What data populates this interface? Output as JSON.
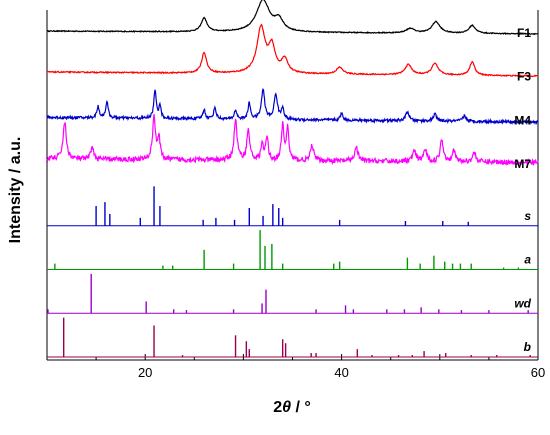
{
  "chart_data": {
    "type": "line",
    "xlabel_prefix": "2",
    "xlabel_theta": "θ",
    "xlabel_suffix": " / °",
    "ylabel": "Intensity / a.u.",
    "xlim": [
      10,
      60
    ],
    "xticks": [
      "20",
      "40",
      "60"
    ],
    "grid": false,
    "series": [
      {
        "name": "F1",
        "color": "#000000",
        "label_italic": false,
        "kind": "pattern",
        "base": 0.95,
        "noise": 0.08,
        "slope": 0.25,
        "peaks": [
          [
            26.0,
            1.2,
            0.35
          ],
          [
            32.0,
            2.8,
            0.8
          ],
          [
            33.6,
            1.0,
            0.5
          ],
          [
            47.0,
            0.4,
            0.5
          ],
          [
            49.6,
            1.0,
            0.5
          ],
          [
            53.3,
            0.7,
            0.4
          ]
        ]
      },
      {
        "name": "F3",
        "color": "#ff0000",
        "label_italic": false,
        "kind": "pattern",
        "base": 1.1,
        "noise": 0.1,
        "slope": 0.35,
        "peaks": [
          [
            26.0,
            1.8,
            0.3
          ],
          [
            31.8,
            4.0,
            0.5
          ],
          [
            32.9,
            2.2,
            0.4
          ],
          [
            34.2,
            1.2,
            0.4
          ],
          [
            39.8,
            0.6,
            0.4
          ],
          [
            46.8,
            0.9,
            0.4
          ],
          [
            49.5,
            1.0,
            0.4
          ],
          [
            53.3,
            1.2,
            0.3
          ]
        ]
      },
      {
        "name": "M4",
        "color": "#0000cc",
        "label_italic": false,
        "kind": "pattern",
        "base": 0.9,
        "noise": 0.25,
        "slope": 0.4,
        "peaks": [
          [
            15.2,
            1.0,
            0.15
          ],
          [
            16.1,
            1.4,
            0.15
          ],
          [
            21.0,
            2.4,
            0.15
          ],
          [
            21.5,
            1.2,
            0.12
          ],
          [
            26.0,
            0.8,
            0.15
          ],
          [
            27.1,
            1.0,
            0.15
          ],
          [
            29.2,
            0.8,
            0.15
          ],
          [
            30.6,
            1.4,
            0.15
          ],
          [
            32.0,
            2.6,
            0.2
          ],
          [
            33.3,
            2.2,
            0.2
          ],
          [
            34.0,
            1.0,
            0.15
          ],
          [
            40.0,
            0.6,
            0.15
          ],
          [
            46.7,
            0.8,
            0.2
          ],
          [
            49.5,
            0.6,
            0.2
          ],
          [
            52.5,
            0.5,
            0.2
          ]
        ]
      },
      {
        "name": "M7",
        "color": "#ff00ff",
        "label_italic": false,
        "kind": "pattern",
        "base": 1.2,
        "noise": 0.45,
        "slope": 0.3,
        "peaks": [
          [
            11.8,
            3.2,
            0.2
          ],
          [
            14.6,
            1.2,
            0.15
          ],
          [
            20.9,
            3.8,
            0.18
          ],
          [
            21.4,
            1.8,
            0.15
          ],
          [
            29.2,
            3.6,
            0.18
          ],
          [
            30.5,
            2.6,
            0.18
          ],
          [
            31.9,
            1.4,
            0.15
          ],
          [
            32.4,
            2.0,
            0.15
          ],
          [
            34.0,
            3.0,
            0.15
          ],
          [
            34.5,
            2.8,
            0.15
          ],
          [
            37.0,
            1.4,
            0.18
          ],
          [
            41.5,
            1.2,
            0.2
          ],
          [
            47.4,
            0.9,
            0.2
          ],
          [
            48.5,
            1.0,
            0.2
          ],
          [
            50.2,
            2.0,
            0.18
          ],
          [
            51.4,
            1.0,
            0.2
          ],
          [
            53.5,
            0.8,
            0.2
          ]
        ]
      },
      {
        "name": "s",
        "color": "#0000cc",
        "label_italic": true,
        "kind": "sticks",
        "sticks": [
          [
            15.0,
            0.5
          ],
          [
            15.9,
            0.6
          ],
          [
            16.4,
            0.3
          ],
          [
            19.5,
            0.2
          ],
          [
            20.9,
            1.0
          ],
          [
            21.5,
            0.5
          ],
          [
            25.9,
            0.15
          ],
          [
            27.2,
            0.2
          ],
          [
            29.1,
            0.15
          ],
          [
            30.6,
            0.45
          ],
          [
            32.0,
            0.25
          ],
          [
            33.0,
            0.55
          ],
          [
            33.6,
            0.45
          ],
          [
            34.0,
            0.2
          ],
          [
            39.8,
            0.15
          ],
          [
            46.5,
            0.12
          ],
          [
            50.3,
            0.12
          ],
          [
            52.9,
            0.1
          ]
        ]
      },
      {
        "name": "a",
        "color": "#009900",
        "label_italic": true,
        "kind": "sticks",
        "sticks": [
          [
            10.8,
            0.15
          ],
          [
            21.8,
            0.1
          ],
          [
            22.8,
            0.1
          ],
          [
            26.0,
            0.5
          ],
          [
            29.0,
            0.15
          ],
          [
            31.7,
            1.0
          ],
          [
            32.2,
            0.6
          ],
          [
            32.9,
            0.65
          ],
          [
            34.0,
            0.15
          ],
          [
            39.2,
            0.15
          ],
          [
            39.8,
            0.2
          ],
          [
            46.7,
            0.3
          ],
          [
            48.0,
            0.15
          ],
          [
            49.4,
            0.35
          ],
          [
            50.5,
            0.2
          ],
          [
            51.3,
            0.15
          ],
          [
            52.1,
            0.15
          ],
          [
            53.2,
            0.15
          ],
          [
            56.5,
            0.05
          ],
          [
            58.0,
            0.05
          ]
        ]
      },
      {
        "name": "wd",
        "color": "#9900cc",
        "label_italic": true,
        "kind": "sticks",
        "sticks": [
          [
            10.1,
            0.1
          ],
          [
            14.5,
            1.0
          ],
          [
            20.1,
            0.3
          ],
          [
            22.9,
            0.1
          ],
          [
            24.2,
            0.08
          ],
          [
            29.0,
            0.1
          ],
          [
            31.9,
            0.25
          ],
          [
            32.3,
            0.6
          ],
          [
            37.4,
            0.1
          ],
          [
            40.4,
            0.2
          ],
          [
            41.2,
            0.1
          ],
          [
            44.6,
            0.1
          ],
          [
            46.4,
            0.1
          ],
          [
            48.1,
            0.15
          ],
          [
            49.9,
            0.1
          ],
          [
            52.2,
            0.08
          ],
          [
            55.0,
            0.08
          ],
          [
            59.0,
            0.08
          ]
        ]
      },
      {
        "name": "b",
        "color": "#99004d",
        "label_italic": true,
        "kind": "sticks",
        "sticks": [
          [
            11.7,
            1.0
          ],
          [
            20.9,
            0.8
          ],
          [
            23.8,
            0.05
          ],
          [
            29.2,
            0.55
          ],
          [
            30.3,
            0.4
          ],
          [
            30.6,
            0.2
          ],
          [
            34.0,
            0.45
          ],
          [
            34.3,
            0.35
          ],
          [
            36.9,
            0.1
          ],
          [
            37.4,
            0.1
          ],
          [
            41.6,
            0.2
          ],
          [
            43.1,
            0.05
          ],
          [
            45.8,
            0.05
          ],
          [
            47.2,
            0.05
          ],
          [
            48.4,
            0.15
          ],
          [
            50.6,
            0.1
          ],
          [
            53.2,
            0.05
          ],
          [
            55.8,
            0.05
          ],
          [
            59.2,
            0.05
          ]
        ]
      }
    ]
  }
}
